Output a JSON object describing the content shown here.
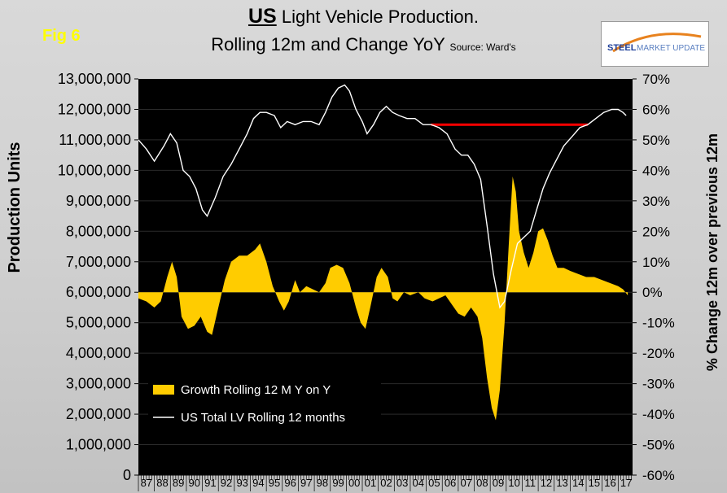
{
  "figure_label": "Fig 6",
  "title": {
    "part1": "US",
    "part2": " Light Vehicle Production.",
    "line2": "Rolling 12m and Change YoY",
    "source": "Source: Ward's"
  },
  "logo": {
    "word1": "STEEL",
    "word2": "MARKET UPDATE"
  },
  "colors": {
    "plot_background": "#000000",
    "growth_area": "#ffcc00",
    "production_line": "#ffffff",
    "reference_line": "#ff0000",
    "logo_steel": "#1f3f99",
    "logo_update": "#5a7fc0",
    "logo_swoosh": "#e8821e"
  },
  "chart_data": {
    "type": "line+area",
    "ylabel_left": "Production Units",
    "ylabel_right": "% Change 12m over previous 12m",
    "left_axis": {
      "range": [
        0,
        13000000
      ],
      "ticks": [
        "0",
        "1,000,000",
        "2,000,000",
        "3,000,000",
        "4,000,000",
        "5,000,000",
        "6,000,000",
        "7,000,000",
        "8,000,000",
        "9,000,000",
        "10,000,000",
        "11,000,000",
        "12,000,000",
        "13,000,000"
      ]
    },
    "right_axis": {
      "range": [
        -60,
        70
      ],
      "ticks": [
        "-60%",
        "-50%",
        "-40%",
        "-30%",
        "-20%",
        "-10%",
        "0%",
        "10%",
        "20%",
        "30%",
        "40%",
        "50%",
        "60%",
        "70%"
      ]
    },
    "x_axis": {
      "range": [
        1987,
        2017.9
      ],
      "labels": [
        "87",
        "88",
        "89",
        "90",
        "91",
        "92",
        "93",
        "94",
        "95",
        "96",
        "97",
        "98",
        "99",
        "00",
        "01",
        "02",
        "03",
        "04",
        "05",
        "06",
        "07",
        "08",
        "09",
        "10",
        "11",
        "12",
        "13",
        "14",
        "15",
        "16",
        "17"
      ]
    },
    "legend": {
      "placement": "bottom-left",
      "entries": [
        "Growth Rolling 12 M Y on Y",
        "US Total LV Rolling 12 months"
      ]
    },
    "series": [
      {
        "name": "US Total LV Rolling 12 months",
        "axis": "left",
        "points": [
          [
            1987.0,
            11000000
          ],
          [
            1987.5,
            10700000
          ],
          [
            1988.0,
            10300000
          ],
          [
            1988.6,
            10800000
          ],
          [
            1989.0,
            11200000
          ],
          [
            1989.4,
            10900000
          ],
          [
            1989.8,
            10000000
          ],
          [
            1990.2,
            9800000
          ],
          [
            1990.6,
            9400000
          ],
          [
            1991.0,
            8700000
          ],
          [
            1991.3,
            8500000
          ],
          [
            1991.8,
            9100000
          ],
          [
            1992.3,
            9800000
          ],
          [
            1992.8,
            10200000
          ],
          [
            1993.3,
            10700000
          ],
          [
            1993.8,
            11200000
          ],
          [
            1994.2,
            11700000
          ],
          [
            1994.6,
            11900000
          ],
          [
            1995.0,
            11900000
          ],
          [
            1995.5,
            11800000
          ],
          [
            1995.9,
            11400000
          ],
          [
            1996.3,
            11600000
          ],
          [
            1996.8,
            11500000
          ],
          [
            1997.3,
            11600000
          ],
          [
            1997.8,
            11600000
          ],
          [
            1998.3,
            11500000
          ],
          [
            1998.7,
            11900000
          ],
          [
            1999.1,
            12400000
          ],
          [
            1999.5,
            12700000
          ],
          [
            1999.9,
            12800000
          ],
          [
            2000.2,
            12600000
          ],
          [
            2000.6,
            12000000
          ],
          [
            2001.0,
            11600000
          ],
          [
            2001.3,
            11200000
          ],
          [
            2001.7,
            11500000
          ],
          [
            2002.1,
            11900000
          ],
          [
            2002.5,
            12100000
          ],
          [
            2002.9,
            11900000
          ],
          [
            2003.3,
            11800000
          ],
          [
            2003.8,
            11700000
          ],
          [
            2004.3,
            11700000
          ],
          [
            2004.8,
            11500000
          ],
          [
            2005.3,
            11500000
          ],
          [
            2005.8,
            11400000
          ],
          [
            2006.3,
            11200000
          ],
          [
            2006.8,
            10700000
          ],
          [
            2007.2,
            10500000
          ],
          [
            2007.6,
            10500000
          ],
          [
            2008.0,
            10200000
          ],
          [
            2008.4,
            9700000
          ],
          [
            2008.8,
            8200000
          ],
          [
            2009.2,
            6600000
          ],
          [
            2009.6,
            5500000
          ],
          [
            2009.9,
            5700000
          ],
          [
            2010.3,
            6700000
          ],
          [
            2010.7,
            7600000
          ],
          [
            2011.1,
            7800000
          ],
          [
            2011.5,
            8000000
          ],
          [
            2011.9,
            8700000
          ],
          [
            2012.3,
            9400000
          ],
          [
            2012.7,
            9900000
          ],
          [
            2013.1,
            10300000
          ],
          [
            2013.6,
            10800000
          ],
          [
            2014.1,
            11100000
          ],
          [
            2014.6,
            11400000
          ],
          [
            2015.1,
            11500000
          ],
          [
            2015.6,
            11700000
          ],
          [
            2016.1,
            11900000
          ],
          [
            2016.6,
            12000000
          ],
          [
            2017.0,
            12000000
          ],
          [
            2017.3,
            11900000
          ],
          [
            2017.5,
            11800000
          ]
        ]
      },
      {
        "name": "Growth Rolling 12 M Y on Y",
        "axis": "right",
        "points": [
          [
            1987.0,
            -2
          ],
          [
            1987.5,
            -3
          ],
          [
            1988.0,
            -5
          ],
          [
            1988.4,
            -3
          ],
          [
            1988.8,
            5
          ],
          [
            1989.1,
            10
          ],
          [
            1989.4,
            5
          ],
          [
            1989.7,
            -8
          ],
          [
            1990.1,
            -12
          ],
          [
            1990.5,
            -11
          ],
          [
            1990.9,
            -8
          ],
          [
            1991.3,
            -13
          ],
          [
            1991.6,
            -14
          ],
          [
            1992.0,
            -5
          ],
          [
            1992.4,
            4
          ],
          [
            1992.8,
            10
          ],
          [
            1993.3,
            12
          ],
          [
            1993.8,
            12
          ],
          [
            1994.3,
            14
          ],
          [
            1994.6,
            16
          ],
          [
            1995.0,
            10
          ],
          [
            1995.4,
            2
          ],
          [
            1995.8,
            -3
          ],
          [
            1996.1,
            -6
          ],
          [
            1996.4,
            -3
          ],
          [
            1996.8,
            4
          ],
          [
            1997.1,
            0
          ],
          [
            1997.5,
            2
          ],
          [
            1997.9,
            1
          ],
          [
            1998.3,
            0
          ],
          [
            1998.7,
            3
          ],
          [
            1999.0,
            8
          ],
          [
            1999.4,
            9
          ],
          [
            1999.8,
            8
          ],
          [
            2000.2,
            3
          ],
          [
            2000.6,
            -5
          ],
          [
            2000.9,
            -10
          ],
          [
            2001.2,
            -12
          ],
          [
            2001.5,
            -5
          ],
          [
            2001.9,
            5
          ],
          [
            2002.2,
            8
          ],
          [
            2002.6,
            5
          ],
          [
            2002.9,
            -2
          ],
          [
            2003.2,
            -3
          ],
          [
            2003.6,
            0
          ],
          [
            2004.0,
            -1
          ],
          [
            2004.5,
            0
          ],
          [
            2004.9,
            -2
          ],
          [
            2005.4,
            -3
          ],
          [
            2005.8,
            -2
          ],
          [
            2006.2,
            -1
          ],
          [
            2006.6,
            -4
          ],
          [
            2007.0,
            -7
          ],
          [
            2007.4,
            -8
          ],
          [
            2007.8,
            -5
          ],
          [
            2008.2,
            -8
          ],
          [
            2008.5,
            -15
          ],
          [
            2008.8,
            -28
          ],
          [
            2009.1,
            -38
          ],
          [
            2009.35,
            -42
          ],
          [
            2009.6,
            -32
          ],
          [
            2009.9,
            -10
          ],
          [
            2010.15,
            15
          ],
          [
            2010.4,
            38
          ],
          [
            2010.6,
            33
          ],
          [
            2010.8,
            20
          ],
          [
            2011.1,
            13
          ],
          [
            2011.4,
            8
          ],
          [
            2011.7,
            13
          ],
          [
            2012.0,
            20
          ],
          [
            2012.3,
            21
          ],
          [
            2012.6,
            17
          ],
          [
            2012.9,
            12
          ],
          [
            2013.2,
            8
          ],
          [
            2013.6,
            8
          ],
          [
            2014.0,
            7
          ],
          [
            2014.5,
            6
          ],
          [
            2015.0,
            5
          ],
          [
            2015.5,
            5
          ],
          [
            2016.0,
            4
          ],
          [
            2016.5,
            3
          ],
          [
            2017.0,
            2
          ],
          [
            2017.3,
            1
          ],
          [
            2017.6,
            -1
          ]
        ]
      }
    ],
    "reference_line": {
      "axis": "left",
      "y": 11500000,
      "x": [
        2005.3,
        2015.1
      ]
    }
  }
}
